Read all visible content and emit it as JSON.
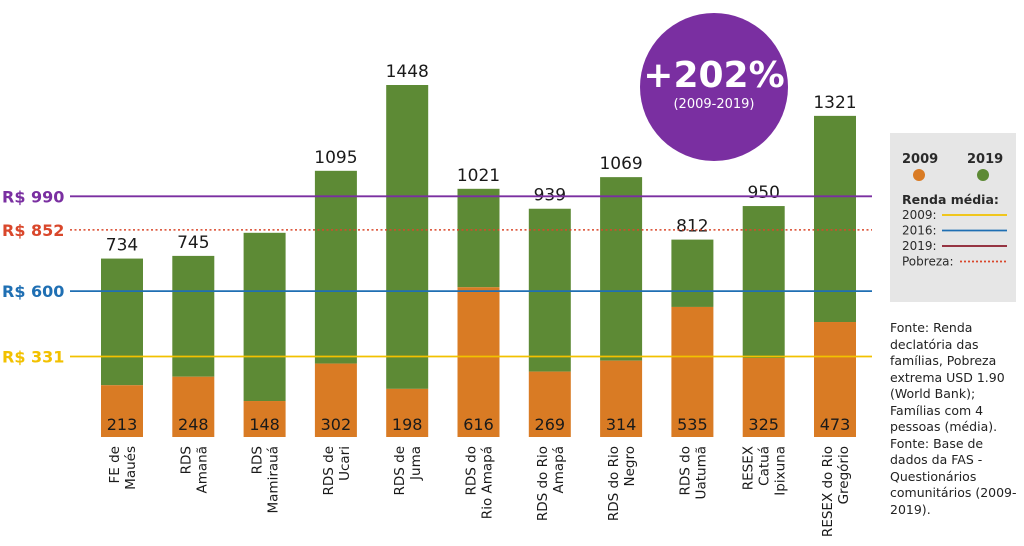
{
  "badge": {
    "percent": "+202%",
    "period": "(2009-2019)"
  },
  "legend": {
    "y2009": "2009",
    "y2019": "2019",
    "renda_title": "Renda média:",
    "items": [
      {
        "label": "2009:",
        "color": "#f2c100",
        "style": "solid"
      },
      {
        "label": "2016:",
        "color": "#1f6fb3",
        "style": "solid"
      },
      {
        "label": "2019:",
        "color": "#8b1a2b",
        "style": "solid"
      },
      {
        "label": "Pobreza:",
        "color": "#d9472b",
        "style": "dotted"
      }
    ]
  },
  "source_text": "Fonte: Renda declatória das famílias, Pobreza extrema USD 1.90 (World Bank); Famílias com 4 pessoas (média). Fonte: Base de dados da FAS - Questionários comunitários (2009-2019).",
  "colors": {
    "c2009": "#d97b24",
    "c2019": "#5d8a35"
  },
  "chart_data": {
    "type": "bar",
    "categories": [
      [
        "FE de",
        "Maués"
      ],
      [
        "RDS",
        "Amanã"
      ],
      [
        "RDS",
        "Mamirauá"
      ],
      [
        "RDS de",
        "Ucari"
      ],
      [
        "RDS de",
        "Juma"
      ],
      [
        "RDS do",
        "Rio Amapá"
      ],
      [
        "RDS do Rio",
        "Amapá"
      ],
      [
        "RDS do Rio",
        "Negro"
      ],
      [
        "RDS do",
        "Uatumã"
      ],
      [
        "RESEX",
        "Catuá",
        "Ipixuna"
      ],
      [
        "RESEX do Rio",
        "Gregório"
      ]
    ],
    "series": [
      {
        "name": "2009",
        "values": [
          213,
          248,
          148,
          302,
          198,
          616,
          269,
          314,
          535,
          325,
          473
        ]
      },
      {
        "name": "2019",
        "values": [
          734,
          745,
          840,
          1095,
          1448,
          1021,
          939,
          1069,
          812,
          950,
          1321
        ]
      }
    ],
    "top_labels": [
      "734",
      "745",
      "",
      "1095",
      "1448",
      "1021",
      "939",
      "1069",
      "812",
      "950",
      "1321"
    ],
    "bottom_labels": [
      "213",
      "248",
      "148",
      "302",
      "198",
      "616",
      "269",
      "314",
      "535",
      "325",
      "473"
    ],
    "reference_lines": [
      {
        "label": "R$ 990",
        "value": 990,
        "color": "#7a2fa1",
        "style": "solid"
      },
      {
        "label": "R$ 852",
        "value": 852,
        "color": "#d9472b",
        "style": "dotted"
      },
      {
        "label": "R$ 600",
        "value": 600,
        "color": "#1f6fb3",
        "style": "solid"
      },
      {
        "label": "R$ 331",
        "value": 331,
        "color": "#f2c100",
        "style": "solid"
      }
    ],
    "ylim": [
      0,
      1448
    ]
  }
}
